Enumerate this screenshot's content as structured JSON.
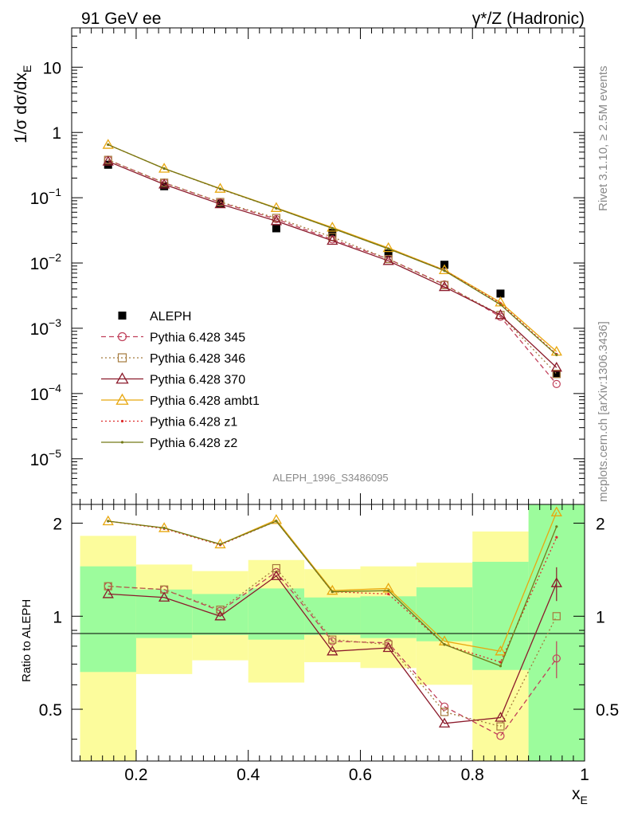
{
  "header": {
    "left": "91 GeV ee",
    "right": "γ*/Z (Hadronic)"
  },
  "side_labels": {
    "rivet": "Rivet 3.1.10, ≥ 2.5M events",
    "mcplots": "mcplots.cern.ch [arXiv:1306.3436]"
  },
  "analysis_label": "ALEPH_1996_S3486095",
  "chart_data": [
    {
      "type": "line",
      "panel": "main",
      "ylabel": "1/σ dσ/dx_E",
      "yscale": "log",
      "ylim": [
        2e-06,
        40
      ],
      "xlim": [
        0.085,
        1.0
      ],
      "y_ticks": [
        {
          "base": "10",
          "exp": "1"
        },
        {
          "base": "1",
          "exp": ""
        },
        {
          "base": "10",
          "exp": "−1"
        },
        {
          "base": "10",
          "exp": "−2"
        },
        {
          "base": "10",
          "exp": "−3"
        },
        {
          "base": "10",
          "exp": "−4"
        },
        {
          "base": "10",
          "exp": "−5"
        }
      ],
      "legend_position": "bottom-left",
      "x": [
        0.15,
        0.25,
        0.35,
        0.45,
        0.55,
        0.65,
        0.75,
        0.85,
        0.95
      ],
      "series": [
        {
          "name": "ALEPH",
          "color": "#000000",
          "style": "data-square",
          "values": [
            0.32,
            0.15,
            0.082,
            0.034,
            0.029,
            0.014,
            0.0094,
            0.0034,
            0.0002
          ]
        },
        {
          "name": "Pythia 6.428 345",
          "color": "#c0405a",
          "style": "dashed-circle",
          "values": [
            0.38,
            0.17,
            0.085,
            0.047,
            0.023,
            0.0115,
            0.0047,
            0.0015,
            0.00014
          ]
        },
        {
          "name": "Pythia 6.428 346",
          "color": "#a57a3d",
          "style": "dotted-square",
          "values": [
            0.38,
            0.17,
            0.086,
            0.049,
            0.025,
            0.0115,
            0.0046,
            0.0016,
            0.0002
          ]
        },
        {
          "name": "Pythia 6.428 370",
          "color": "#8b1a2b",
          "style": "solid-triangle",
          "values": [
            0.36,
            0.16,
            0.08,
            0.044,
            0.022,
            0.0108,
            0.0043,
            0.0016,
            0.00025
          ]
        },
        {
          "name": "Pythia 6.428 ambt1",
          "color": "#e8a70f",
          "style": "solid-triangle",
          "values": [
            0.65,
            0.28,
            0.138,
            0.07,
            0.035,
            0.017,
            0.0078,
            0.0025,
            0.00044
          ]
        },
        {
          "name": "Pythia 6.428 z1",
          "color": "#dd2a2a",
          "style": "dotted-dot",
          "values": [
            0.65,
            0.28,
            0.136,
            0.069,
            0.034,
            0.0165,
            0.0077,
            0.0024,
            0.0004
          ]
        },
        {
          "name": "Pythia 6.428 z2",
          "color": "#737a17",
          "style": "solid-dot",
          "values": [
            0.65,
            0.28,
            0.137,
            0.069,
            0.034,
            0.0165,
            0.0076,
            0.0023,
            0.00039
          ]
        }
      ]
    },
    {
      "type": "line",
      "panel": "ratio",
      "ylabel": "Ratio to ALEPH",
      "xlabel": "x_E",
      "ylim": [
        0.34,
        2.3
      ],
      "xlim": [
        0.085,
        1.0
      ],
      "x_ticks": [
        "0.2",
        "0.4",
        "0.6",
        "0.8",
        "1"
      ],
      "y_ticks": [
        "0.5",
        "1",
        "2"
      ],
      "bins": [
        [
          0.1,
          0.2
        ],
        [
          0.2,
          0.3
        ],
        [
          0.3,
          0.4
        ],
        [
          0.4,
          0.5
        ],
        [
          0.5,
          0.6
        ],
        [
          0.6,
          0.7
        ],
        [
          0.7,
          0.8
        ],
        [
          0.8,
          0.9
        ],
        [
          0.9,
          1.0
        ]
      ],
      "band_inner": [
        [
          0.66,
          1.45
        ],
        [
          0.85,
          1.22
        ],
        [
          0.87,
          1.18
        ],
        [
          0.84,
          1.23
        ],
        [
          0.87,
          1.15
        ],
        [
          0.85,
          1.16
        ],
        [
          0.83,
          1.24
        ],
        [
          0.67,
          1.5
        ],
        [
          0.34,
          2.3
        ]
      ],
      "band_outer": [
        [
          0.34,
          1.82
        ],
        [
          0.65,
          1.47
        ],
        [
          0.72,
          1.4
        ],
        [
          0.61,
          1.52
        ],
        [
          0.71,
          1.42
        ],
        [
          0.68,
          1.45
        ],
        [
          0.6,
          1.49
        ],
        [
          0.34,
          1.88
        ],
        [
          0.34,
          2.3
        ]
      ],
      "band_colors": {
        "inner": "#9cfc9c",
        "outer": "#fcfc9c"
      },
      "x": [
        0.15,
        0.25,
        0.35,
        0.45,
        0.55,
        0.65,
        0.75,
        0.85,
        0.95
      ],
      "series": [
        {
          "name": "Pythia 6.428 345",
          "color": "#c0405a",
          "style": "dashed-circle",
          "values": [
            1.25,
            1.22,
            1.04,
            1.39,
            0.83,
            0.82,
            0.51,
            0.41,
            0.73
          ],
          "err": [
            0,
            0,
            0,
            0,
            0,
            0,
            0,
            0,
            0.1
          ]
        },
        {
          "name": "Pythia 6.428 346",
          "color": "#a57a3d",
          "style": "dotted-square",
          "values": [
            1.25,
            1.22,
            1.05,
            1.43,
            0.84,
            0.81,
            0.49,
            0.44,
            1.0
          ]
        },
        {
          "name": "Pythia 6.428 370",
          "color": "#8b1a2b",
          "style": "solid-triangle",
          "values": [
            1.18,
            1.15,
            1.0,
            1.35,
            0.77,
            0.79,
            0.45,
            0.47,
            1.28
          ],
          "err": [
            0,
            0,
            0,
            0,
            0,
            0,
            0,
            0,
            0.16
          ]
        },
        {
          "name": "Pythia 6.428 ambt1",
          "color": "#e8a70f",
          "style": "solid-triangle",
          "values": [
            2.03,
            1.93,
            1.71,
            2.05,
            1.21,
            1.23,
            0.83,
            0.77,
            2.17
          ]
        },
        {
          "name": "Pythia 6.428 z1",
          "color": "#dd2a2a",
          "style": "dotted-dot",
          "values": [
            2.03,
            1.92,
            1.7,
            2.03,
            1.2,
            1.18,
            0.81,
            0.71,
            1.8
          ]
        },
        {
          "name": "Pythia 6.428 z2",
          "color": "#737a17",
          "style": "solid-dot",
          "values": [
            2.03,
            1.93,
            1.71,
            2.03,
            1.2,
            1.21,
            0.81,
            0.69,
            1.95
          ]
        }
      ]
    }
  ]
}
